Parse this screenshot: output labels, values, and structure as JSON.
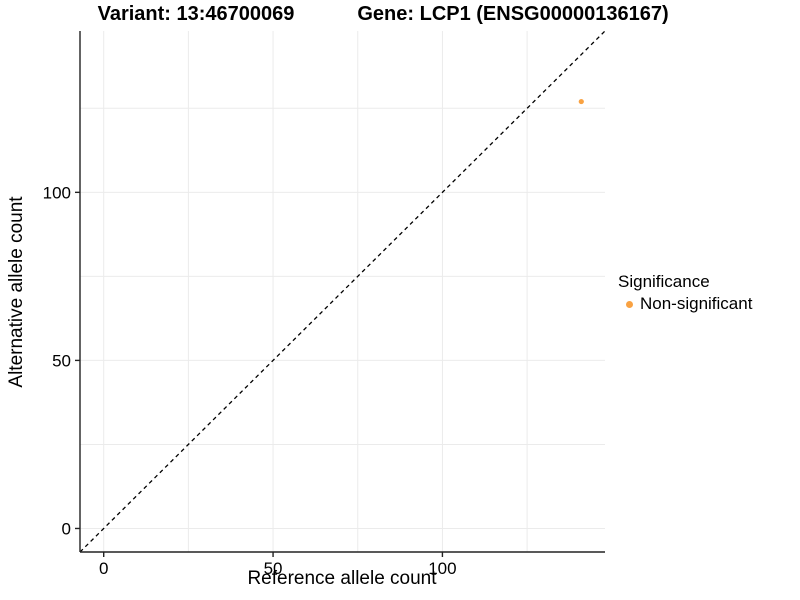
{
  "titles": {
    "variant": "Variant: 13:46700069",
    "gene": "Gene: LCP1 (ENSG00000136167)"
  },
  "axes": {
    "x_label": "Reference allele count",
    "y_label": "Alternative allele count"
  },
  "legend": {
    "title": "Significance",
    "entries": [
      {
        "label": "Non-significant",
        "color": "#F9A242"
      }
    ]
  },
  "chart_data": {
    "type": "scatter",
    "title_left": "Variant: 13:46700069",
    "title_right": "Gene: LCP1 (ENSG00000136167)",
    "xlabel": "Reference allele count",
    "ylabel": "Alternative allele count",
    "xlim": [
      -7,
      148
    ],
    "ylim": [
      -7,
      148
    ],
    "x_ticks": [
      0,
      50,
      100
    ],
    "y_ticks": [
      0,
      50,
      100
    ],
    "x_minor_ticks": [
      25,
      75,
      125
    ],
    "y_minor_ticks": [
      25,
      75,
      125
    ],
    "grid": true,
    "grid_color": "#EBEBEB",
    "axis_color": "#222222",
    "point_color": "#F9A242",
    "legend_position": "right",
    "series": [
      {
        "name": "Non-significant",
        "color": "#F9A242",
        "points": [
          {
            "x": 141,
            "y": 127
          }
        ]
      }
    ],
    "reference_line": {
      "type": "identity",
      "style": "dashed",
      "color": "#000000"
    }
  }
}
